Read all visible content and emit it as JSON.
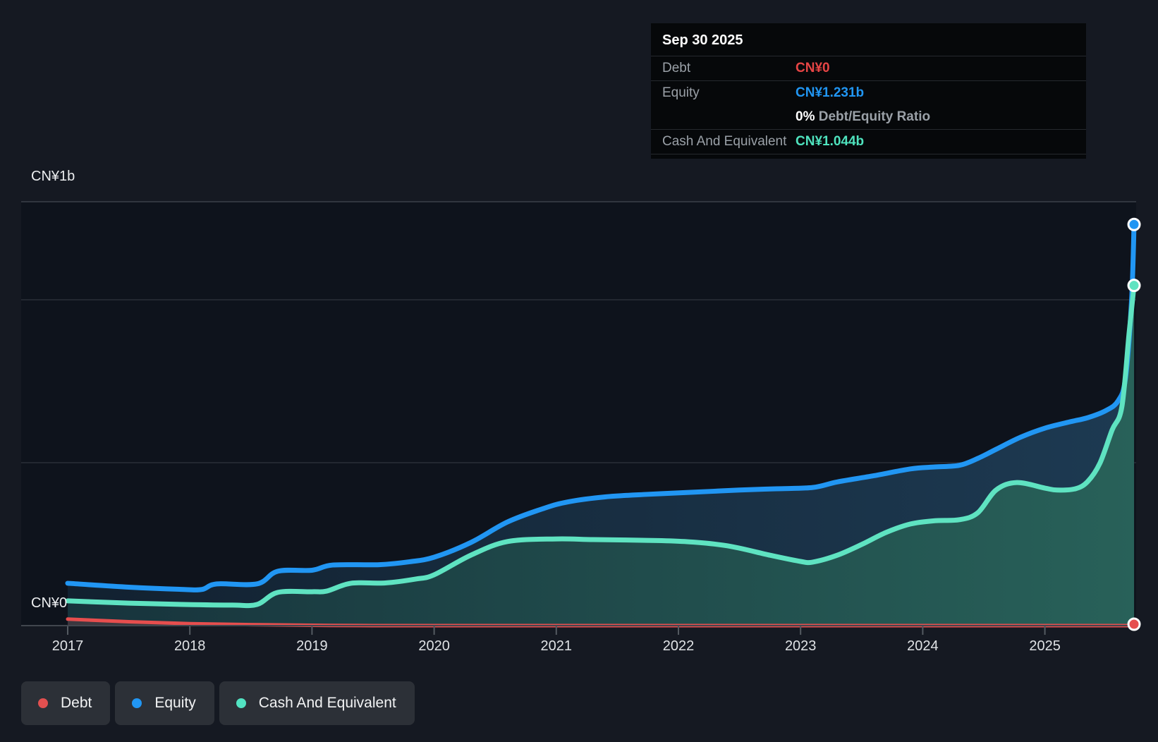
{
  "tooltip": {
    "date": "Sep 30 2025",
    "rows": [
      {
        "label": "Debt",
        "value": "CN¥0",
        "color": "#e64545"
      },
      {
        "label": "Equity",
        "value": "CN¥1.231b",
        "color": "#2196f3"
      },
      {
        "label": "Cash And Equivalent",
        "value": "CN¥1.044b",
        "color": "#4fe3be"
      }
    ],
    "ratio_pct": "0%",
    "ratio_label": "Debt/Equity Ratio"
  },
  "y_axis": {
    "top_label": "CN¥1b",
    "zero_label": "CN¥0"
  },
  "x_axis": {
    "years": [
      "2017",
      "2018",
      "2019",
      "2020",
      "2021",
      "2022",
      "2023",
      "2024",
      "2025"
    ]
  },
  "legend": {
    "items": [
      {
        "label": "Debt",
        "color": "#e25050"
      },
      {
        "label": "Equity",
        "color": "#2196f3"
      },
      {
        "label": "Cash And Equivalent",
        "color": "#52e3c2"
      }
    ]
  },
  "chart_data": {
    "type": "area",
    "unit": "CN¥ billions",
    "x_range": [
      2017,
      2025.75
    ],
    "ylim": [
      0,
      1.3
    ],
    "gridline_values": [
      1.0,
      0.5
    ],
    "grid": true,
    "legend_position": "bottom-left",
    "series": [
      {
        "name": "Equity",
        "color": "#2196f3",
        "end_value_label": "CN¥1.231b",
        "points": [
          [
            2017.0,
            0.13
          ],
          [
            2017.5,
            0.118
          ],
          [
            2017.95,
            0.111
          ],
          [
            2018.1,
            0.111
          ],
          [
            2018.22,
            0.128
          ],
          [
            2018.55,
            0.128
          ],
          [
            2018.72,
            0.167
          ],
          [
            2019.0,
            0.17
          ],
          [
            2019.17,
            0.186
          ],
          [
            2019.55,
            0.187
          ],
          [
            2019.8,
            0.196
          ],
          [
            2020.0,
            0.21
          ],
          [
            2020.3,
            0.255
          ],
          [
            2020.6,
            0.318
          ],
          [
            2020.9,
            0.36
          ],
          [
            2021.1,
            0.38
          ],
          [
            2021.4,
            0.395
          ],
          [
            2021.75,
            0.403
          ],
          [
            2022.1,
            0.409
          ],
          [
            2022.5,
            0.416
          ],
          [
            2022.8,
            0.42
          ],
          [
            2023.1,
            0.424
          ],
          [
            2023.3,
            0.441
          ],
          [
            2023.6,
            0.46
          ],
          [
            2023.9,
            0.481
          ],
          [
            2024.1,
            0.487
          ],
          [
            2024.3,
            0.492
          ],
          [
            2024.45,
            0.513
          ],
          [
            2024.6,
            0.541
          ],
          [
            2024.8,
            0.578
          ],
          [
            2025.0,
            0.606
          ],
          [
            2025.2,
            0.625
          ],
          [
            2025.35,
            0.638
          ],
          [
            2025.5,
            0.66
          ],
          [
            2025.6,
            0.69
          ],
          [
            2025.66,
            0.76
          ],
          [
            2025.71,
            1.0
          ],
          [
            2025.73,
            1.231
          ]
        ]
      },
      {
        "name": "Cash And Equivalent",
        "color": "#5fe3c1",
        "end_value_label": "CN¥1.044b",
        "points": [
          [
            2017.0,
            0.076
          ],
          [
            2017.5,
            0.069
          ],
          [
            2017.95,
            0.065
          ],
          [
            2018.35,
            0.063
          ],
          [
            2018.55,
            0.065
          ],
          [
            2018.72,
            0.102
          ],
          [
            2019.0,
            0.104
          ],
          [
            2019.12,
            0.106
          ],
          [
            2019.32,
            0.13
          ],
          [
            2019.6,
            0.131
          ],
          [
            2019.85,
            0.143
          ],
          [
            2020.0,
            0.156
          ],
          [
            2020.3,
            0.216
          ],
          [
            2020.6,
            0.258
          ],
          [
            2021.0,
            0.266
          ],
          [
            2021.3,
            0.264
          ],
          [
            2021.7,
            0.262
          ],
          [
            2022.05,
            0.258
          ],
          [
            2022.4,
            0.245
          ],
          [
            2022.75,
            0.216
          ],
          [
            2023.0,
            0.197
          ],
          [
            2023.1,
            0.195
          ],
          [
            2023.3,
            0.216
          ],
          [
            2023.5,
            0.249
          ],
          [
            2023.7,
            0.286
          ],
          [
            2023.9,
            0.312
          ],
          [
            2024.1,
            0.322
          ],
          [
            2024.3,
            0.325
          ],
          [
            2024.45,
            0.346
          ],
          [
            2024.6,
            0.416
          ],
          [
            2024.77,
            0.439
          ],
          [
            2025.0,
            0.422
          ],
          [
            2025.1,
            0.416
          ],
          [
            2025.25,
            0.42
          ],
          [
            2025.35,
            0.442
          ],
          [
            2025.45,
            0.498
          ],
          [
            2025.55,
            0.6
          ],
          [
            2025.63,
            0.671
          ],
          [
            2025.69,
            0.9
          ],
          [
            2025.73,
            1.044
          ]
        ]
      },
      {
        "name": "Debt",
        "color": "#e64e4e",
        "end_value_label": "CN¥0",
        "points": [
          [
            2017.0,
            0.02
          ],
          [
            2017.5,
            0.012
          ],
          [
            2018.0,
            0.006
          ],
          [
            2018.5,
            0.003
          ],
          [
            2019.0,
            0.001
          ],
          [
            2019.5,
            0.0
          ],
          [
            2020.5,
            0.0
          ],
          [
            2021.5,
            0.0
          ],
          [
            2022.5,
            0.0
          ],
          [
            2023.5,
            0.0
          ],
          [
            2024.5,
            0.0
          ],
          [
            2025.73,
            0.0
          ]
        ]
      }
    ]
  }
}
